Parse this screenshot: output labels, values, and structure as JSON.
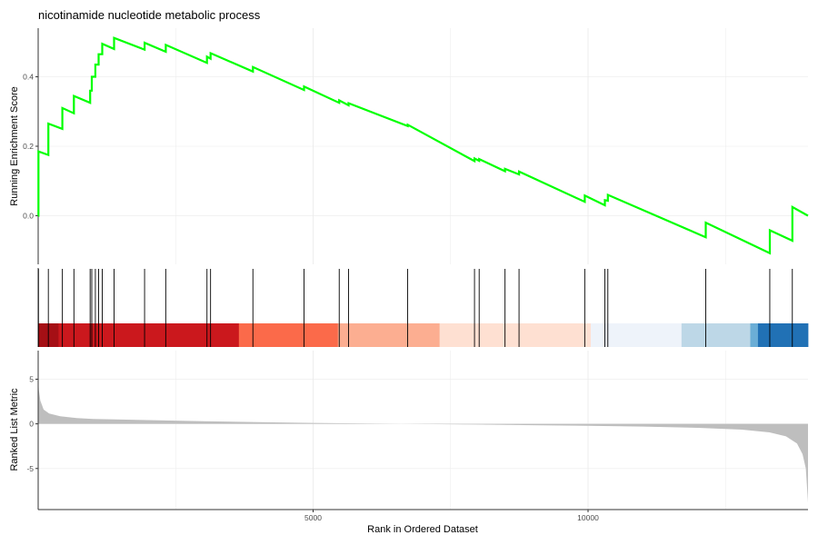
{
  "chart_data": {
    "type": "line",
    "title": "nicotinamide nucleotide metabolic process",
    "xlabel": "Rank in Ordered Dataset",
    "x_ticks": [
      5000,
      10000
    ],
    "xlim": [
      0,
      14000
    ],
    "grid": "vertical",
    "colors": {
      "es_line": "#00ff00",
      "hit_line": "#000000",
      "ranked_fill": "#bebebe",
      "grid": "#ebebeb",
      "axis": "#333333"
    },
    "panels": {
      "enrichment": {
        "ylabel": "Running Enrichment Score",
        "y_ticks": [
          0.0,
          0.2,
          0.4
        ],
        "y_tick_labels": [
          "0.0",
          "0.2",
          "0.4"
        ],
        "ylim": [
          -0.14,
          0.54
        ],
        "hits": [
          {
            "rank": 5,
            "before": 0.0,
            "after": 0.185
          },
          {
            "rank": 185,
            "before": 0.175,
            "after": 0.265
          },
          {
            "rank": 440,
            "before": 0.25,
            "after": 0.31
          },
          {
            "rank": 650,
            "before": 0.295,
            "after": 0.345
          },
          {
            "rank": 945,
            "before": 0.325,
            "after": 0.36
          },
          {
            "rank": 975,
            "before": 0.36,
            "after": 0.4
          },
          {
            "rank": 1040,
            "before": 0.4,
            "after": 0.435
          },
          {
            "rank": 1100,
            "before": 0.435,
            "after": 0.465
          },
          {
            "rank": 1165,
            "before": 0.465,
            "after": 0.495
          },
          {
            "rank": 1380,
            "before": 0.48,
            "after": 0.512
          },
          {
            "rank": 1935,
            "before": 0.478,
            "after": 0.498
          },
          {
            "rank": 2320,
            "before": 0.472,
            "after": 0.492
          },
          {
            "rank": 3070,
            "before": 0.44,
            "after": 0.458
          },
          {
            "rank": 3135,
            "before": 0.452,
            "after": 0.468
          },
          {
            "rank": 3905,
            "before": 0.415,
            "after": 0.428
          },
          {
            "rank": 4835,
            "before": 0.362,
            "after": 0.372
          },
          {
            "rank": 5475,
            "before": 0.325,
            "after": 0.332
          },
          {
            "rank": 5645,
            "before": 0.318,
            "after": 0.324
          },
          {
            "rank": 6720,
            "before": 0.258,
            "after": 0.262
          },
          {
            "rank": 7935,
            "before": 0.157,
            "after": 0.165
          },
          {
            "rank": 8020,
            "before": 0.158,
            "after": 0.163
          },
          {
            "rank": 8490,
            "before": 0.128,
            "after": 0.135
          },
          {
            "rank": 8745,
            "before": 0.119,
            "after": 0.127
          },
          {
            "rank": 9940,
            "before": 0.04,
            "after": 0.058
          },
          {
            "rank": 10305,
            "before": 0.03,
            "after": 0.045
          },
          {
            "rank": 10360,
            "before": 0.043,
            "after": 0.06
          },
          {
            "rank": 12140,
            "before": -0.062,
            "after": -0.02
          },
          {
            "rank": 13305,
            "before": -0.108,
            "after": -0.042
          },
          {
            "rank": 13715,
            "before": -0.072,
            "after": 0.025
          }
        ],
        "end": {
          "rank": 14000,
          "value": 0.0
        }
      },
      "heatmap_bar": {
        "segments": [
          {
            "from": 0,
            "to": 370,
            "color": "#a50f15"
          },
          {
            "from": 370,
            "to": 3650,
            "color": "#cb181d"
          },
          {
            "from": 3650,
            "to": 5450,
            "color": "#fb6a4a"
          },
          {
            "from": 5450,
            "to": 7300,
            "color": "#fcae91"
          },
          {
            "from": 7300,
            "to": 10050,
            "color": "#fee0d2"
          },
          {
            "from": 10050,
            "to": 11700,
            "color": "#eef3fa"
          },
          {
            "from": 11700,
            "to": 12950,
            "color": "#bdd7e7"
          },
          {
            "from": 12950,
            "to": 13090,
            "color": "#6baed6"
          },
          {
            "from": 13090,
            "to": 14000,
            "color": "#2171b5"
          }
        ]
      },
      "ranked": {
        "ylabel": "Ranked List Metric",
        "y_ticks": [
          -5,
          0,
          5
        ],
        "y_tick_labels": [
          "-5",
          "0",
          "5"
        ],
        "ylim": [
          -9.6,
          8.2
        ],
        "curve": [
          [
            0,
            5.2
          ],
          [
            12,
            3.8
          ],
          [
            40,
            2.6
          ],
          [
            100,
            1.6
          ],
          [
            200,
            1.15
          ],
          [
            400,
            0.85
          ],
          [
            700,
            0.65
          ],
          [
            1000,
            0.55
          ],
          [
            2000,
            0.42
          ],
          [
            3000,
            0.3
          ],
          [
            4000,
            0.2
          ],
          [
            5000,
            0.1
          ],
          [
            6000,
            0.03
          ],
          [
            7000,
            -0.03
          ],
          [
            8000,
            -0.08
          ],
          [
            9000,
            -0.15
          ],
          [
            10000,
            -0.22
          ],
          [
            11000,
            -0.3
          ],
          [
            12000,
            -0.45
          ],
          [
            12800,
            -0.65
          ],
          [
            13300,
            -0.95
          ],
          [
            13600,
            -1.4
          ],
          [
            13800,
            -2.2
          ],
          [
            13900,
            -3.4
          ],
          [
            13960,
            -5.0
          ],
          [
            14000,
            -8.8
          ]
        ]
      }
    }
  }
}
